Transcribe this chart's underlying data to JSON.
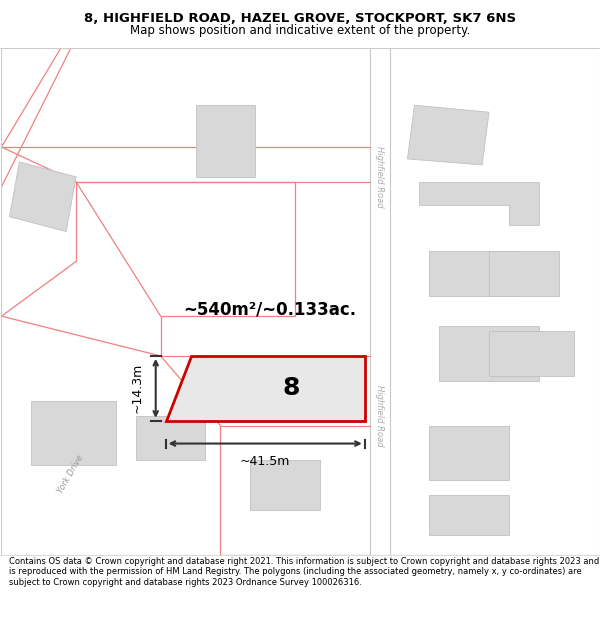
{
  "title_line1": "8, HIGHFIELD ROAD, HAZEL GROVE, STOCKPORT, SK7 6NS",
  "title_line2": "Map shows position and indicative extent of the property.",
  "footer_text": "Contains OS data © Crown copyright and database right 2021. This information is subject to Crown copyright and database rights 2023 and is reproduced with the permission of HM Land Registry. The polygons (including the associated geometry, namely x, y co-ordinates) are subject to Crown copyright and database rights 2023 Ordnance Survey 100026316.",
  "map_bg": "#ffffff",
  "boundary_color": "#f08080",
  "building_fill": "#d8d8d8",
  "building_border": "#c0c0c0",
  "highlight_fill": "#e8e8e8",
  "highlight_border": "#cc0000",
  "road_strip_color": "#ffffff",
  "road_border_color": "#d0d0d0",
  "road_label_color": "#aaaaaa",
  "area_text": "~540m²/~0.133ac.",
  "width_text": "~41.5m",
  "height_text": "~14.3m",
  "property_number": "8",
  "title_fontsize": 9.5,
  "subtitle_fontsize": 8.5,
  "footer_fontsize": 6.0
}
